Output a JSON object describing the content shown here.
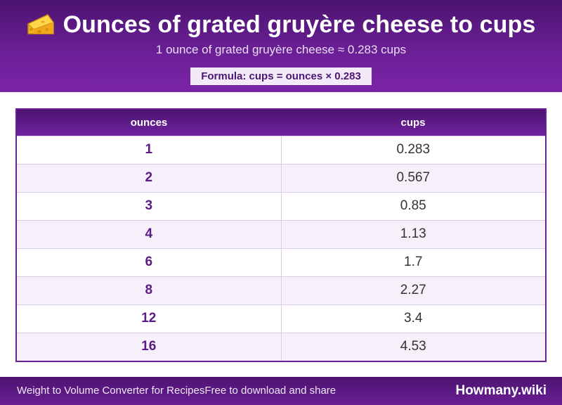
{
  "header": {
    "title": "Ounces of grated gruyère cheese to cups",
    "icon": "cheese-icon",
    "subtitle": "1 ounce of grated gruyère cheese ≈ 0.283 cups",
    "formula": "Formula: cups = ounces × 0.283"
  },
  "table": {
    "columns": [
      "ounces",
      "cups"
    ],
    "rows": [
      {
        "ounces": "1",
        "cups": "0.283"
      },
      {
        "ounces": "2",
        "cups": "0.567"
      },
      {
        "ounces": "3",
        "cups": "0.85"
      },
      {
        "ounces": "4",
        "cups": "1.13"
      },
      {
        "ounces": "6",
        "cups": "1.7"
      },
      {
        "ounces": "8",
        "cups": "2.27"
      },
      {
        "ounces": "12",
        "cups": "3.4"
      },
      {
        "ounces": "16",
        "cups": "4.53"
      }
    ]
  },
  "footer": {
    "left_text": "Weight to Volume Converter for RecipesFree to download and share",
    "brand": "Howmany.wiki"
  },
  "colors": {
    "brand_purple": "#6a1f95",
    "dark_purple": "#4c1470",
    "row_alt": "#f5f0fa"
  }
}
